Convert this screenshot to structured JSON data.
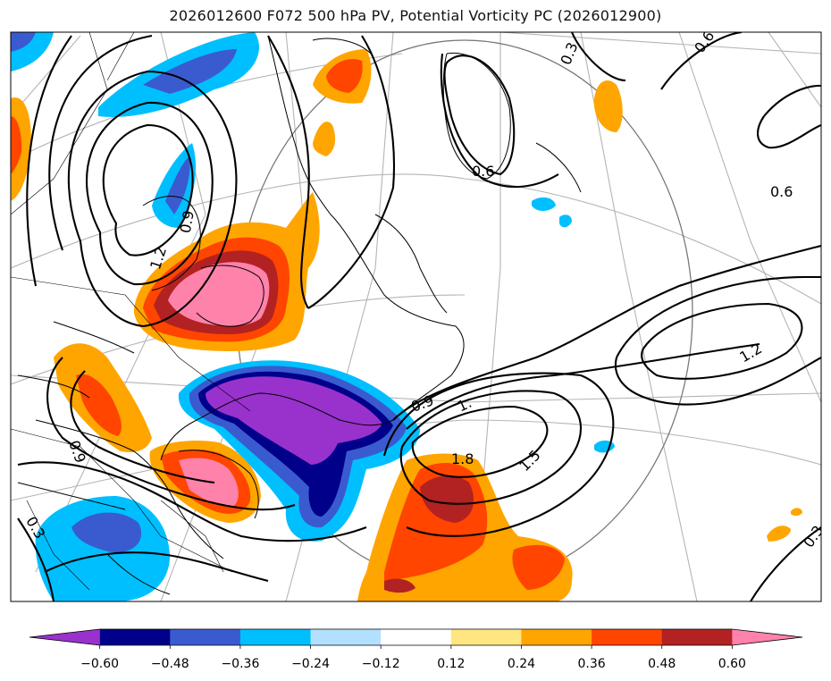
{
  "title": "2026012600 F072 500 hPa PV, Potential Vorticity PC (2026012900)",
  "colors": {
    "purple": "#9932cc",
    "navy": "#00008b",
    "royal": "#3a5bcf",
    "sky": "#00bfff",
    "pale_blue": "#b3e0ff",
    "white": "#ffffff",
    "pale_yellow": "#ffe680",
    "orange": "#ffa500",
    "red_orange": "#ff4500",
    "dark_red": "#b22222",
    "pink": "#ff82ab"
  },
  "contour_labels": [
    "0.3",
    "0.6",
    "0.6",
    "0.6",
    "0.9",
    "1.2",
    "1.2",
    "0.9",
    "1.",
    "1.5",
    "1.8",
    "0.9",
    "0.3",
    "0.3"
  ],
  "colorbar": {
    "ticks": [
      "−0.60",
      "−0.48",
      "−0.36",
      "−0.24",
      "−0.12",
      "0.12",
      "0.24",
      "0.36",
      "0.48",
      "0.60"
    ],
    "segment_colors": [
      "#9932cc",
      "#00008b",
      "#3a5bcf",
      "#00bfff",
      "#b3e0ff",
      "#ffffff",
      "#ffe680",
      "#ffa500",
      "#ff4500",
      "#b22222",
      "#ff82ab"
    ]
  }
}
